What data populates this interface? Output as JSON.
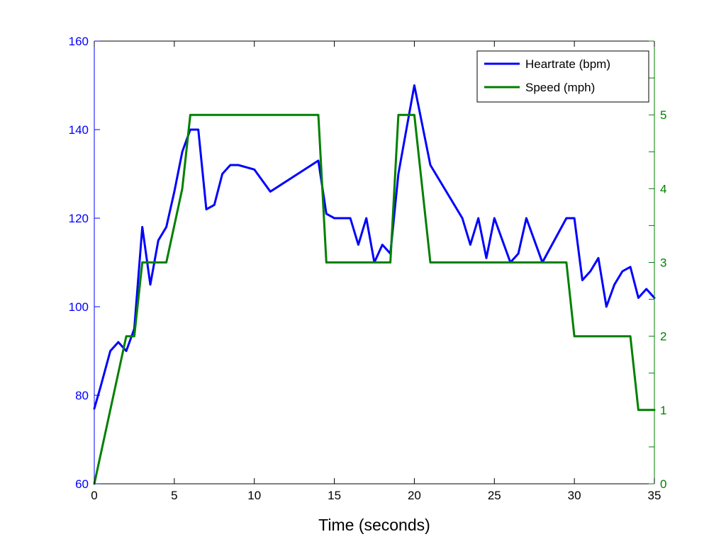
{
  "chart_data": {
    "type": "line",
    "xlabel": "Time (seconds)",
    "xlim": [
      0,
      35
    ],
    "x_ticks": [
      0,
      5,
      10,
      15,
      20,
      25,
      30,
      35
    ],
    "left_axis": {
      "label": "",
      "lim": [
        60,
        160
      ],
      "ticks": [
        60,
        80,
        100,
        120,
        140,
        160
      ],
      "color": "#0000ff"
    },
    "right_axis": {
      "label": "",
      "lim": [
        0,
        6
      ],
      "ticks": [
        0,
        1,
        2,
        3,
        4,
        5
      ],
      "color": "#008000"
    },
    "grid": false,
    "legend": {
      "position": "top-right"
    },
    "series": [
      {
        "name": "Heartrate (bpm)",
        "axis": "left",
        "color": "#0000ff",
        "x": [
          0,
          0.4,
          1,
          1.5,
          2,
          2.5,
          3,
          3.5,
          4,
          4.5,
          5,
          5.5,
          6,
          6.5,
          7,
          7.5,
          8,
          8.5,
          9,
          10,
          11,
          14,
          14.5,
          15,
          16,
          16.5,
          17,
          17.5,
          18,
          18.5,
          19,
          20,
          21,
          23,
          23.5,
          24,
          24.5,
          25,
          26,
          26.5,
          27,
          28,
          29.5,
          30,
          30.5,
          31,
          31.5,
          32,
          32.5,
          33,
          33.5,
          34,
          34.5,
          35
        ],
        "y": [
          77,
          82,
          90,
          92,
          90,
          95,
          118,
          105,
          115,
          118,
          126,
          135,
          140,
          140,
          122,
          123,
          130,
          132,
          132,
          131,
          126,
          133,
          121,
          120,
          120,
          114,
          120,
          110,
          114,
          112,
          130,
          150,
          132,
          120,
          114,
          120,
          111,
          120,
          110,
          112,
          120,
          110,
          120,
          120,
          106,
          108,
          111,
          100,
          105,
          108,
          109,
          102,
          104,
          102
        ]
      },
      {
        "name": "Speed (mph)",
        "axis": "right",
        "color": "#008000",
        "x": [
          0,
          2,
          2.5,
          3,
          4.5,
          5.5,
          6,
          14,
          14.5,
          18.5,
          19,
          20,
          21,
          29.5,
          30,
          33.5,
          34,
          35
        ],
        "y": [
          0,
          2,
          2,
          3,
          3,
          4,
          5,
          5,
          3,
          3,
          5,
          5,
          3,
          3,
          2,
          2,
          1,
          1
        ]
      }
    ]
  }
}
